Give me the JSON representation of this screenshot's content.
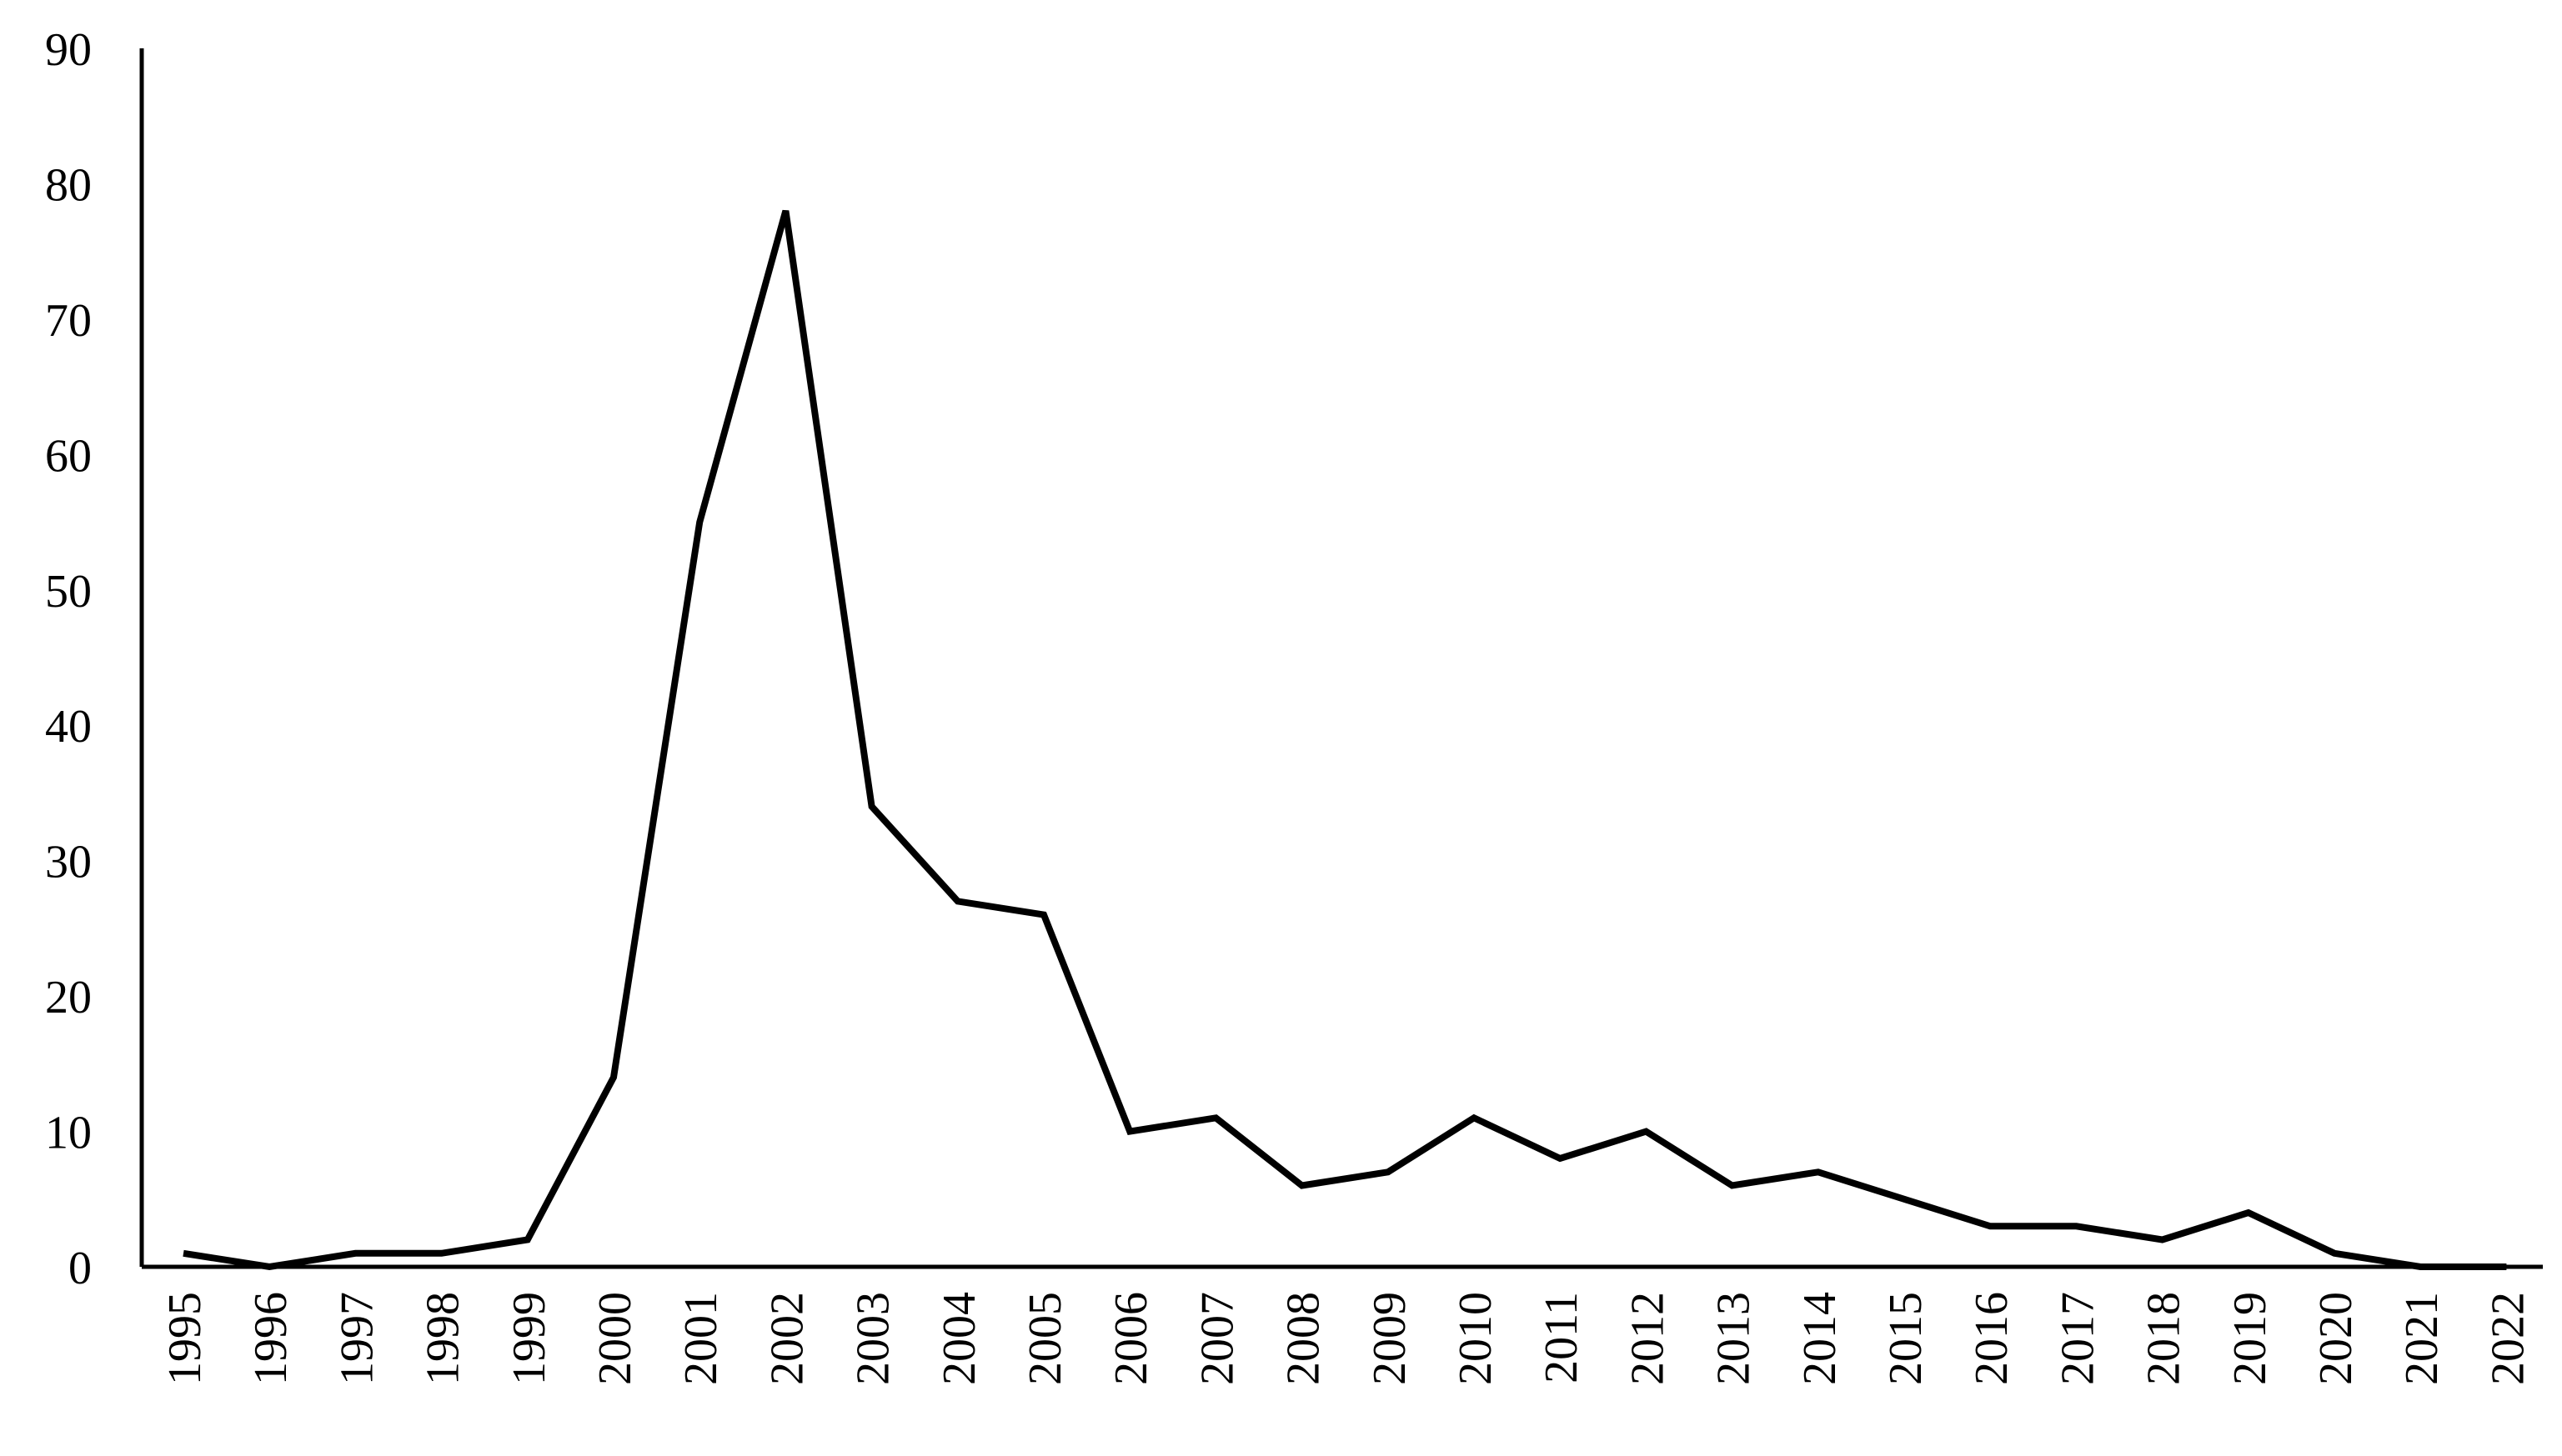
{
  "chart_data": {
    "type": "line",
    "title": "",
    "xlabel": "",
    "ylabel": "",
    "ylim": [
      0,
      90
    ],
    "yticks": [
      "0",
      "10",
      "20",
      "30",
      "40",
      "50",
      "60",
      "70",
      "80",
      "90"
    ],
    "grid": false,
    "legend": "none",
    "line_color": "#000000",
    "categories": [
      "1995",
      "1996",
      "1997",
      "1998",
      "1999",
      "2000",
      "2001",
      "2002",
      "2003",
      "2004",
      "2005",
      "2006",
      "2007",
      "2008",
      "2009",
      "2010",
      "2011",
      "2012",
      "2013",
      "2014",
      "2015",
      "2016",
      "2017",
      "2018",
      "2019",
      "2020",
      "2021",
      "2022"
    ],
    "series": [
      {
        "values": [
          1,
          0,
          1,
          1,
          2,
          14,
          55,
          78,
          34,
          27,
          26,
          10,
          11,
          6,
          7,
          11,
          8,
          10,
          6,
          7,
          5,
          3,
          3,
          2,
          4,
          1,
          0,
          0
        ]
      }
    ]
  }
}
